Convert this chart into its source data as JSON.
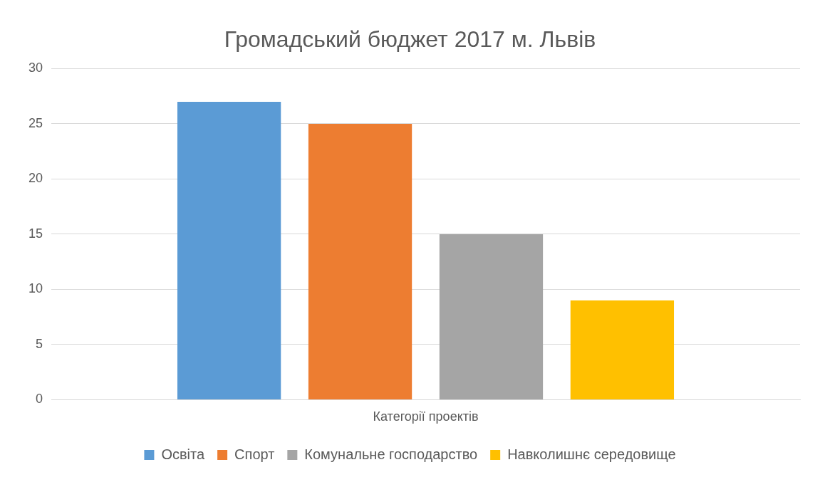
{
  "chart_data": {
    "type": "bar",
    "title": "Громадський бюджет 2017 м. Львів",
    "categories": [
      "Категорії проектів"
    ],
    "series": [
      {
        "name": "Освіта",
        "color": "#5b9bd5",
        "values": [
          27
        ]
      },
      {
        "name": "Спорт",
        "color": "#ed7d31",
        "values": [
          25
        ]
      },
      {
        "name": "Комунальне господарство",
        "color": "#a5a5a5",
        "values": [
          15
        ]
      },
      {
        "name": "Навколишнє середовище",
        "color": "#ffc000",
        "values": [
          9
        ]
      }
    ],
    "ylim": [
      0,
      30
    ],
    "yticks": [
      0,
      5,
      10,
      15,
      20,
      25,
      30
    ],
    "grid": "y",
    "legend": "bottom"
  }
}
